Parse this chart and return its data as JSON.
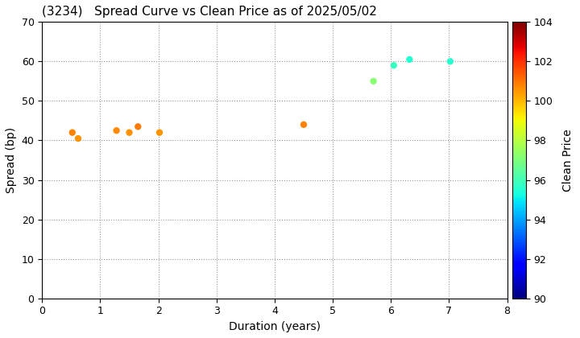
{
  "title": "(3234)   Spread Curve vs Clean Price as of 2025/05/02",
  "xlabel": "Duration (years)",
  "ylabel": "Spread (bp)",
  "colorbar_label": "Clean Price",
  "xlim": [
    0,
    8
  ],
  "ylim": [
    0,
    70
  ],
  "xticks": [
    0,
    1,
    2,
    3,
    4,
    5,
    6,
    7,
    8
  ],
  "yticks": [
    0,
    10,
    20,
    30,
    40,
    50,
    60,
    70
  ],
  "colorbar_min": 90,
  "colorbar_max": 104,
  "colorbar_ticks": [
    90,
    92,
    94,
    96,
    98,
    100,
    102,
    104
  ],
  "points": [
    {
      "duration": 0.52,
      "spread": 42.0,
      "clean_price": 100.8
    },
    {
      "duration": 0.62,
      "spread": 40.5,
      "clean_price": 100.5
    },
    {
      "duration": 1.28,
      "spread": 42.5,
      "clean_price": 100.7
    },
    {
      "duration": 1.5,
      "spread": 42.0,
      "clean_price": 100.6
    },
    {
      "duration": 1.65,
      "spread": 43.5,
      "clean_price": 100.9
    },
    {
      "duration": 2.02,
      "spread": 42.0,
      "clean_price": 100.5
    },
    {
      "duration": 4.5,
      "spread": 44.0,
      "clean_price": 100.8
    },
    {
      "duration": 5.7,
      "spread": 55.0,
      "clean_price": 97.2
    },
    {
      "duration": 6.05,
      "spread": 59.0,
      "clean_price": 95.8
    },
    {
      "duration": 6.32,
      "spread": 60.5,
      "clean_price": 95.5
    },
    {
      "duration": 7.02,
      "spread": 60.0,
      "clean_price": 95.6
    }
  ],
  "marker_size": 25,
  "background_color": "#ffffff",
  "grid_color": "#999999",
  "colormap": "jet",
  "title_fontsize": 11,
  "axis_fontsize": 10,
  "tick_fontsize": 9,
  "colorbar_label_fontsize": 10,
  "colorbar_tick_fontsize": 9
}
